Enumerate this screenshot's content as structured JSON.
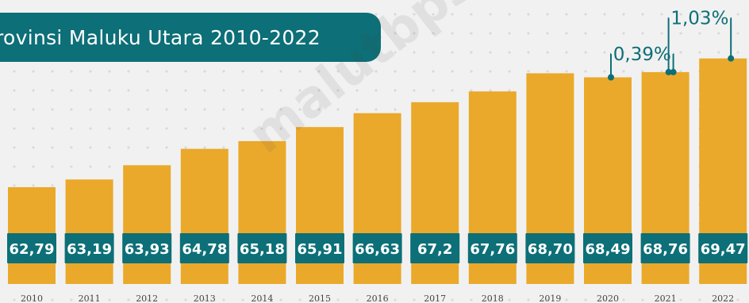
{
  "title": "rovinsi Maluku Utara 2010-2022",
  "watermark": "malutbps.go.id",
  "colors": {
    "bar": "#eaa92a",
    "accent": "#0d6f77",
    "label_bg": "#0d6f77",
    "background": "#f1f1f1"
  },
  "chart_data": {
    "type": "bar",
    "title": "rovinsi Maluku Utara 2010-2022",
    "categories": [
      "2010",
      "2011",
      "2012",
      "2013",
      "2014",
      "2015",
      "2016",
      "2017",
      "2018",
      "2019",
      "2020",
      "2021",
      "2022"
    ],
    "values": [
      62.79,
      63.19,
      63.93,
      64.78,
      65.18,
      65.91,
      66.63,
      67.2,
      67.76,
      68.7,
      68.49,
      68.76,
      69.47
    ],
    "value_labels": [
      "62,79",
      "63,19",
      "63,93",
      "64,78",
      "65,18",
      "65,91",
      "66,63",
      "67,2",
      "67,76",
      "68,70",
      "68,49",
      "68,76",
      "69,47"
    ],
    "annotations": [
      {
        "text": "0,39%",
        "from": "2020",
        "to": "2021"
      },
      {
        "text": "1,03%",
        "from": "2021",
        "to": "2022"
      }
    ],
    "grid": false,
    "legend": "none"
  }
}
